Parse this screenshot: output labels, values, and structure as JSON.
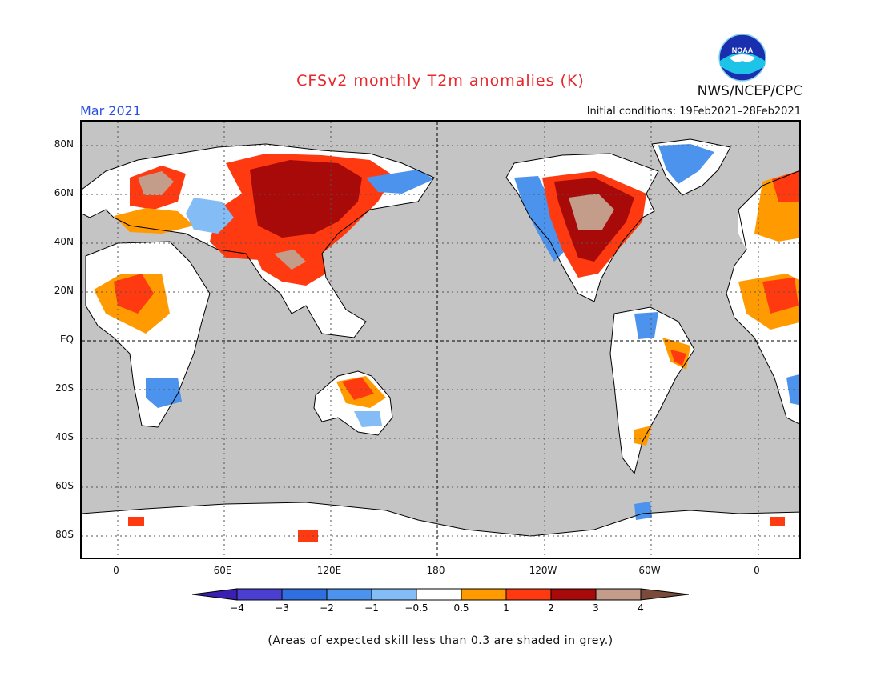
{
  "header": {
    "title": "CFSv2 monthly T2m anomalies (K)",
    "agency": "NWS/NCEP/CPC",
    "month": "Mar 2021",
    "initial_conditions": "Initial conditions: 19Feb2021–28Feb2021",
    "logo_text": "NOAA"
  },
  "axes": {
    "lat_labels": [
      "80N",
      "60N",
      "40N",
      "20N",
      "EQ",
      "20S",
      "40S",
      "60S",
      "80S"
    ],
    "lon_labels": [
      "0",
      "60E",
      "120E",
      "180",
      "120W",
      "60W",
      "0"
    ]
  },
  "legend": {
    "tick_labels": [
      "−4",
      "−3",
      "−2",
      "−1",
      "−0.5",
      "0.5",
      "1",
      "2",
      "3",
      "4"
    ],
    "colors": [
      "#3a1fb0",
      "#4a3fd0",
      "#2f6fe0",
      "#4c93ee",
      "#84bcf5",
      "#ffffff",
      "#ff9a00",
      "#ff3a10",
      "#a80a0a",
      "#c49c8a",
      "#7a4a3a"
    ]
  },
  "note": "(Areas of expected skill less than 0.3 are shaded in grey.)",
  "colors": {
    "grey_background": "#c4c4c4",
    "title_red": "#e8262b",
    "month_blue": "#2a4fe0"
  }
}
